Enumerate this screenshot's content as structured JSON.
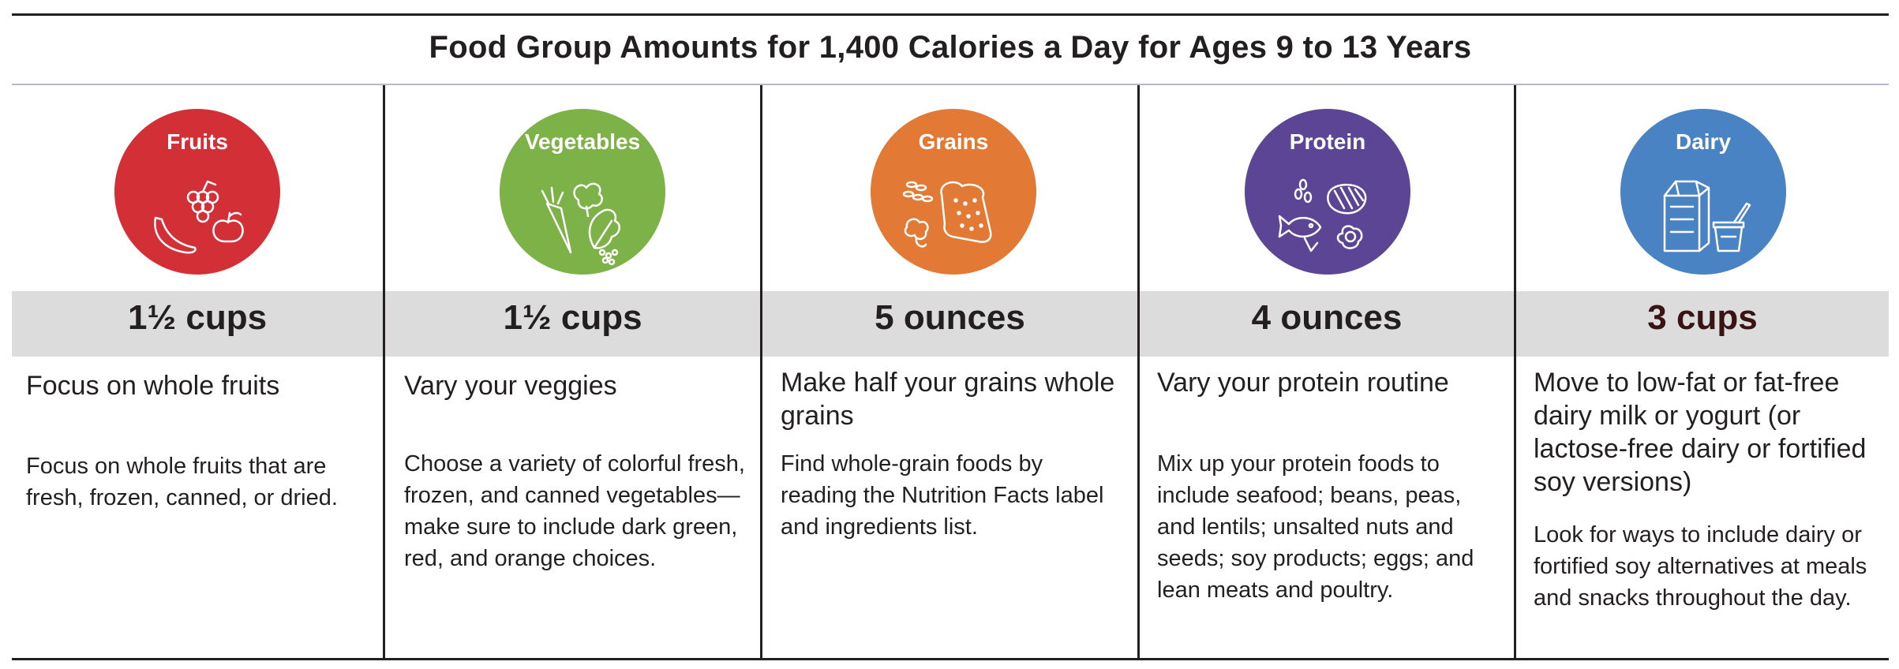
{
  "title": "Food Group Amounts for 1,400 Calories a Day for Ages 9 to 13 Years",
  "groups": [
    {
      "name": "Fruits",
      "icon": "fruits-icon",
      "color": "#d22f36",
      "amount": "1½ cups",
      "heading": "Focus on whole fruits",
      "body": "Focus on whole fruits that are fresh, frozen, canned, or dried."
    },
    {
      "name": "Vegetables",
      "icon": "vegetables-icon",
      "color": "#7db249",
      "amount": "1½ cups",
      "heading": "Vary your veggies",
      "body": "Choose a variety of colorful fresh, frozen, and canned vegetables—make sure to include dark green, red, and orange choices."
    },
    {
      "name": "Grains",
      "icon": "grains-icon",
      "color": "#e27a36",
      "amount": "5 ounces",
      "heading": "Make half your grains whole grains",
      "body": "Find whole-grain foods by reading the Nutrition Facts label and ingredients list."
    },
    {
      "name": "Protein",
      "icon": "protein-icon",
      "color": "#5c4595",
      "amount": "4 ounces",
      "heading": "Vary your protein routine",
      "body": "Mix up your protein foods to include seafood; beans, peas, and lentils; unsalted nuts and seeds; soy products; eggs; and lean meats and poultry."
    },
    {
      "name": "Dairy",
      "icon": "dairy-icon",
      "color": "#4a83c4",
      "amount": "3 cups",
      "heading": "Move to low-fat or fat-free dairy milk or yogurt (or lactose-free dairy or fortified soy versions)",
      "body": "Look for ways to include dairy or fortified soy alternatives at meals and snacks throughout the day."
    }
  ]
}
